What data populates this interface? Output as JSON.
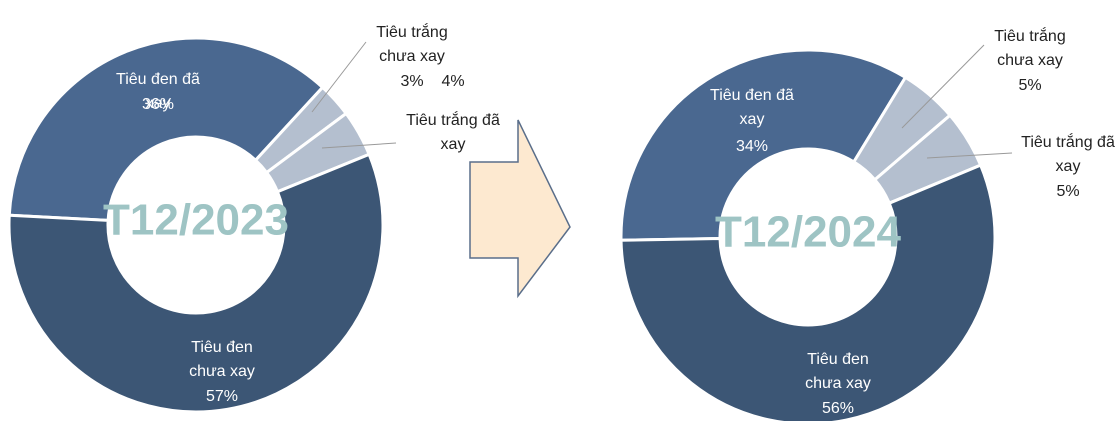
{
  "chart_data": [
    {
      "type": "pie",
      "title": "T12/2023",
      "categories": [
        "Tiêu đen đã xay",
        "Tiêu trắng chưa xay",
        "Tiêu trắng đã xay",
        "Tiêu đen chưa xay"
      ],
      "values": [
        36,
        3,
        4,
        57
      ],
      "value_labels": [
        "36%",
        "3%",
        "4%",
        "57%"
      ],
      "colors": [
        "#4a6890",
        "#b4bfcf",
        "#b4bfcf",
        "#3c5675"
      ]
    },
    {
      "type": "pie",
      "title": "T12/2024",
      "categories": [
        "Tiêu đen đã xay",
        "Tiêu trắng chưa xay",
        "Tiêu trắng đã xay",
        "Tiêu đen chưa xay"
      ],
      "values": [
        34,
        5,
        5,
        56
      ],
      "value_labels": [
        "34%",
        "5%",
        "5%",
        "56%"
      ],
      "colors": [
        "#4a6890",
        "#b4bfcf",
        "#b4bfcf",
        "#3c5675"
      ]
    }
  ]
}
